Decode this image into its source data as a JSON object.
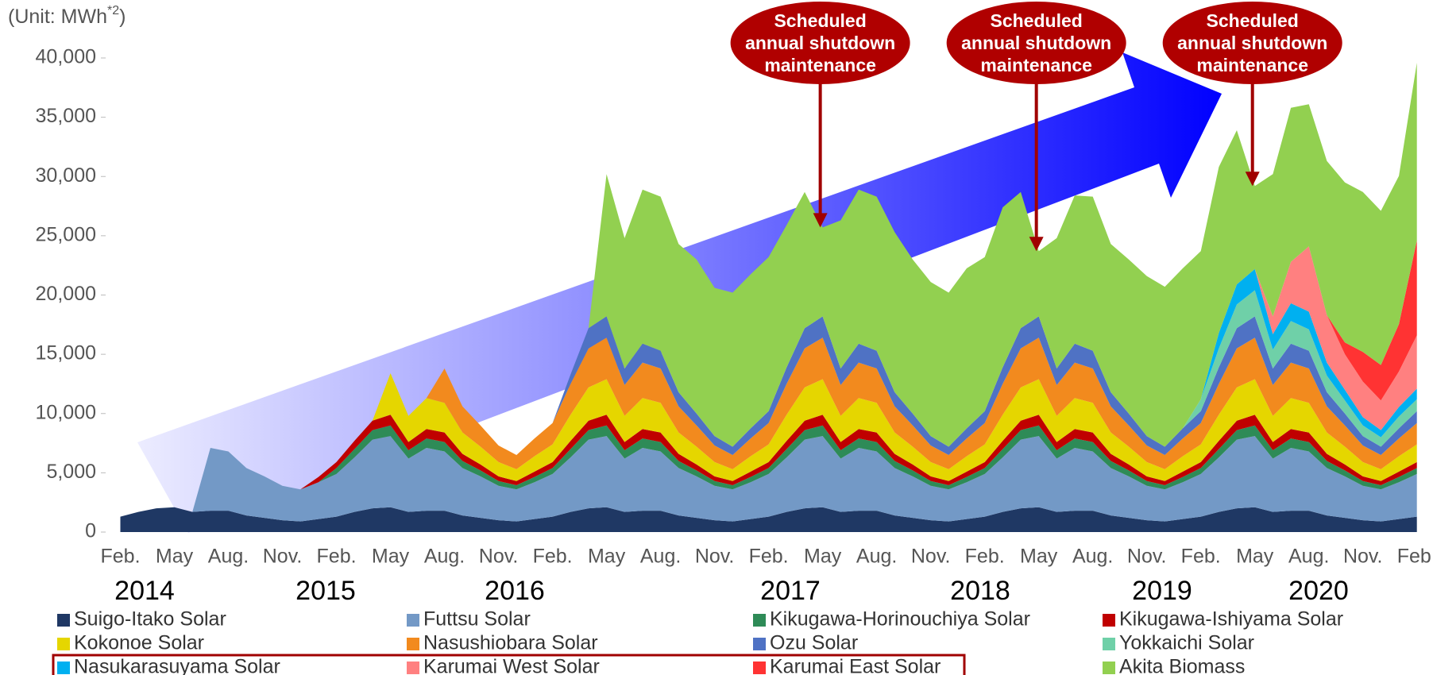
{
  "chart_data": {
    "type": "stacked_area",
    "unit_label": [
      "(Unit: MWh",
      "*2",
      ")"
    ],
    "categories": [
      "Feb.",
      null,
      null,
      "May",
      null,
      null,
      "Aug.",
      null,
      null,
      "Nov.",
      null,
      null,
      "Feb.",
      null,
      null,
      "May",
      null,
      null,
      "Aug.",
      null,
      null,
      "Nov.",
      null,
      null,
      "Feb.",
      null,
      null,
      "May",
      null,
      null,
      "Aug.",
      null,
      null,
      "Nov.",
      null,
      null,
      "Feb.",
      null,
      null,
      "May",
      null,
      null,
      "Aug.",
      null,
      null,
      "Nov.",
      null,
      null,
      "Feb.",
      null,
      null,
      "May",
      null,
      null,
      "Aug.",
      null,
      null,
      "Nov.",
      null,
      null,
      "Feb.",
      null,
      null,
      "May",
      null,
      null,
      "Aug.",
      null,
      null,
      "Nov.",
      null,
      null,
      "Feb."
    ],
    "years": [
      "2014",
      "2015",
      "2016",
      "2017",
      "2018",
      "2019",
      "2020"
    ],
    "ylim": [
      0,
      40000
    ],
    "yticks": [
      0,
      {
        "value": 5000,
        "label": "5,000"
      },
      {
        "value": 10000,
        "label": "10,000"
      },
      {
        "value": 15000,
        "label": "15,000"
      },
      {
        "value": 20000,
        "label": "20,000"
      },
      {
        "value": 25000,
        "label": "25,000"
      },
      {
        "value": 30000,
        "label": "30,000"
      },
      {
        "value": 35000,
        "label": "35,000"
      },
      {
        "value": 40000,
        "label": "40,000"
      }
    ],
    "annotations": [
      [
        "Scheduled",
        "annual shutdown",
        "maintenance"
      ],
      [
        "Scheduled",
        "annual shutdown",
        "maintenance"
      ],
      [
        "Scheduled",
        "annual shutdown",
        "maintenance"
      ]
    ],
    "series": [
      {
        "name": "Suigo-Itako Solar",
        "color": "#1f3864",
        "values": [
          1300,
          1700,
          2000,
          2100,
          1700,
          1800,
          1800,
          1400,
          1200,
          1000,
          900,
          1100,
          1300,
          1700,
          2000,
          2100,
          1700,
          1800,
          1800,
          1400,
          1200,
          1000,
          900,
          1100,
          1300,
          1700,
          2000,
          2100,
          1700,
          1800,
          1800,
          1400,
          1200,
          1000,
          900,
          1100,
          1300,
          1700,
          2000,
          2100,
          1700,
          1800,
          1800,
          1400,
          1200,
          1000,
          900,
          1100,
          1300,
          1700,
          2000,
          2100,
          1700,
          1800,
          1800,
          1400,
          1200,
          1000,
          900,
          1100,
          1300,
          1700,
          2000,
          2100,
          1700,
          1800,
          1800,
          1400,
          1200,
          1000,
          900,
          1100,
          1300
        ]
      },
      {
        "name": "Futtsu Solar",
        "color": "#7399c6",
        "values": [
          0,
          0,
          0,
          0,
          0,
          5300,
          5000,
          4000,
          3500,
          2900,
          2700,
          3100,
          3600,
          4600,
          5800,
          6000,
          4500,
          5300,
          5000,
          4000,
          3500,
          2900,
          2700,
          3100,
          3600,
          4600,
          5800,
          6000,
          4500,
          5300,
          5000,
          4000,
          3500,
          2900,
          2700,
          3100,
          3600,
          4600,
          5800,
          6000,
          4500,
          5300,
          5000,
          4000,
          3500,
          2900,
          2700,
          3100,
          3600,
          4600,
          5800,
          6000,
          4500,
          5300,
          5000,
          4000,
          3500,
          2900,
          2700,
          3100,
          3600,
          4600,
          5800,
          6000,
          4500,
          5300,
          5000,
          4000,
          3500,
          2900,
          2700,
          3100,
          3600
        ]
      },
      {
        "name": "Kikugawa-Horinouchiya Solar",
        "color": "#2e8b57",
        "values": [
          0,
          0,
          0,
          0,
          0,
          0,
          0,
          0,
          0,
          0,
          0,
          0,
          500,
          700,
          800,
          900,
          700,
          800,
          800,
          600,
          500,
          400,
          350,
          450,
          500,
          700,
          800,
          900,
          700,
          800,
          800,
          600,
          500,
          400,
          350,
          450,
          500,
          700,
          800,
          900,
          700,
          800,
          800,
          600,
          500,
          400,
          350,
          450,
          500,
          700,
          800,
          900,
          700,
          800,
          800,
          600,
          500,
          400,
          350,
          450,
          500,
          700,
          800,
          900,
          700,
          800,
          800,
          600,
          500,
          400,
          350,
          450,
          500
        ]
      },
      {
        "name": "Kikugawa-Ishiyama Solar",
        "color": "#c00000",
        "values": [
          0,
          0,
          0,
          0,
          0,
          0,
          0,
          0,
          0,
          0,
          0,
          450,
          500,
          700,
          800,
          900,
          700,
          800,
          800,
          600,
          500,
          400,
          350,
          450,
          500,
          700,
          800,
          900,
          700,
          800,
          800,
          600,
          500,
          400,
          350,
          450,
          500,
          700,
          800,
          900,
          700,
          800,
          800,
          600,
          500,
          400,
          350,
          450,
          500,
          700,
          800,
          900,
          700,
          800,
          800,
          600,
          500,
          400,
          350,
          450,
          500,
          700,
          800,
          900,
          700,
          800,
          800,
          600,
          500,
          400,
          350,
          450,
          500
        ]
      },
      {
        "name": "Kokonoe Solar",
        "color": "#e5d600",
        "values": [
          0,
          0,
          0,
          0,
          0,
          0,
          0,
          0,
          0,
          0,
          0,
          0,
          0,
          0,
          0,
          3500,
          2200,
          2600,
          2500,
          1800,
          1500,
          1200,
          1000,
          1300,
          1500,
          2200,
          2800,
          3000,
          2200,
          2600,
          2500,
          1800,
          1500,
          1200,
          1000,
          1300,
          1500,
          2200,
          2800,
          3000,
          2200,
          2600,
          2500,
          1800,
          1500,
          1200,
          1000,
          1300,
          1500,
          2200,
          2800,
          3000,
          2200,
          2600,
          2500,
          1800,
          1500,
          1200,
          1000,
          1300,
          1500,
          2200,
          2800,
          3000,
          2200,
          2600,
          2500,
          1800,
          1500,
          1200,
          1000,
          1300,
          1500
        ]
      },
      {
        "name": "Nasushiobara Solar",
        "color": "#f28a1e",
        "values": [
          0,
          0,
          0,
          0,
          0,
          0,
          0,
          0,
          0,
          0,
          0,
          0,
          0,
          0,
          0,
          0,
          0,
          0,
          2900,
          2200,
          1800,
          1400,
          1200,
          1500,
          1800,
          2600,
          3300,
          3500,
          2600,
          3000,
          2900,
          2200,
          1800,
          1400,
          1200,
          1500,
          1800,
          2600,
          3300,
          3500,
          2600,
          3000,
          2900,
          2200,
          1800,
          1400,
          1200,
          1500,
          1800,
          2600,
          3300,
          3500,
          2600,
          3000,
          2900,
          2200,
          1800,
          1400,
          1200,
          1500,
          1800,
          2600,
          3300,
          3500,
          2600,
          3000,
          2900,
          2200,
          1800,
          1400,
          1200,
          1500,
          1800
        ]
      },
      {
        "name": "Ozu Solar",
        "color": "#4f72c4",
        "values": [
          0,
          0,
          0,
          0,
          0,
          0,
          0,
          0,
          0,
          0,
          0,
          0,
          0,
          0,
          0,
          0,
          0,
          0,
          0,
          0,
          0,
          0,
          0,
          0,
          0,
          800,
          1700,
          1800,
          1400,
          1600,
          1500,
          1200,
          1000,
          800,
          700,
          850,
          1000,
          1400,
          1700,
          1800,
          1400,
          1600,
          1500,
          1200,
          1000,
          800,
          700,
          850,
          1000,
          1400,
          1700,
          1800,
          1400,
          1600,
          1500,
          1200,
          1000,
          800,
          700,
          850,
          1000,
          1400,
          1700,
          1800,
          1400,
          1600,
          1500,
          1200,
          1000,
          800,
          700,
          850,
          1000
        ]
      },
      {
        "name": "Yokkaichi Solar",
        "color": "#6fd0a8",
        "values": [
          0,
          0,
          0,
          0,
          0,
          0,
          0,
          0,
          0,
          0,
          0,
          0,
          0,
          0,
          0,
          0,
          0,
          0,
          0,
          0,
          0,
          0,
          0,
          0,
          0,
          0,
          0,
          0,
          0,
          0,
          0,
          0,
          0,
          0,
          0,
          0,
          0,
          0,
          0,
          0,
          0,
          0,
          0,
          0,
          0,
          0,
          0,
          0,
          0,
          0,
          0,
          0,
          0,
          0,
          0,
          0,
          0,
          0,
          0,
          0,
          1000,
          1600,
          2000,
          2200,
          1600,
          1900,
          1800,
          1400,
          1100,
          900,
          800,
          1000,
          1000
        ]
      },
      {
        "name": "Nasukarasuyama Solar",
        "color": "#00b0f0",
        "values": [
          0,
          0,
          0,
          0,
          0,
          0,
          0,
          0,
          0,
          0,
          0,
          0,
          0,
          0,
          0,
          0,
          0,
          0,
          0,
          0,
          0,
          0,
          0,
          0,
          0,
          0,
          0,
          0,
          0,
          0,
          0,
          0,
          0,
          0,
          0,
          0,
          0,
          0,
          0,
          0,
          0,
          0,
          0,
          0,
          0,
          0,
          0,
          0,
          0,
          0,
          0,
          0,
          0,
          0,
          0,
          0,
          0,
          0,
          0,
          0,
          0,
          1300,
          1700,
          1800,
          1300,
          1500,
          1500,
          1100,
          900,
          700,
          600,
          800,
          900
        ]
      },
      {
        "name": "Karumai West Solar",
        "color": "#ff8080",
        "values": [
          0,
          0,
          0,
          0,
          0,
          0,
          0,
          0,
          0,
          0,
          0,
          0,
          0,
          0,
          0,
          0,
          0,
          0,
          0,
          0,
          0,
          0,
          0,
          0,
          0,
          0,
          0,
          0,
          0,
          0,
          0,
          0,
          0,
          0,
          0,
          0,
          0,
          0,
          0,
          0,
          0,
          0,
          0,
          0,
          0,
          0,
          0,
          0,
          0,
          0,
          0,
          0,
          0,
          0,
          0,
          0,
          0,
          0,
          0,
          0,
          0,
          0,
          0,
          0,
          1500,
          3500,
          5500,
          4000,
          3000,
          3000,
          2500,
          3000,
          4500
        ]
      },
      {
        "name": "Karumai East Solar",
        "color": "#ff3333",
        "values": [
          0,
          0,
          0,
          0,
          0,
          0,
          0,
          0,
          0,
          0,
          0,
          0,
          0,
          0,
          0,
          0,
          0,
          0,
          0,
          0,
          0,
          0,
          0,
          0,
          0,
          0,
          0,
          0,
          0,
          0,
          0,
          0,
          0,
          0,
          0,
          0,
          0,
          0,
          0,
          0,
          0,
          0,
          0,
          0,
          0,
          0,
          0,
          0,
          0,
          0,
          0,
          0,
          0,
          0,
          0,
          0,
          0,
          0,
          0,
          0,
          0,
          0,
          0,
          0,
          0,
          0,
          0,
          0,
          1000,
          2500,
          3000,
          4000,
          8000
        ]
      },
      {
        "name": "Akita Biomass",
        "color": "#92d050",
        "values": [
          0,
          0,
          0,
          0,
          0,
          0,
          0,
          0,
          0,
          0,
          0,
          0,
          0,
          0,
          0,
          0,
          0,
          0,
          0,
          0,
          0,
          0,
          0,
          0,
          0,
          0,
          0,
          12000,
          11000,
          13000,
          13000,
          12500,
          13000,
          12500,
          13000,
          13000,
          13000,
          12000,
          11500,
          7500,
          12500,
          13000,
          13000,
          13500,
          13000,
          13000,
          13000,
          13500,
          13000,
          13500,
          11500,
          5500,
          11000,
          12500,
          13000,
          12500,
          13000,
          13500,
          13500,
          13500,
          12500,
          14000,
          13000,
          7000,
          12000,
          13000,
          12000,
          13000,
          13500,
          13500,
          13000,
          12500,
          15000
        ]
      }
    ]
  }
}
